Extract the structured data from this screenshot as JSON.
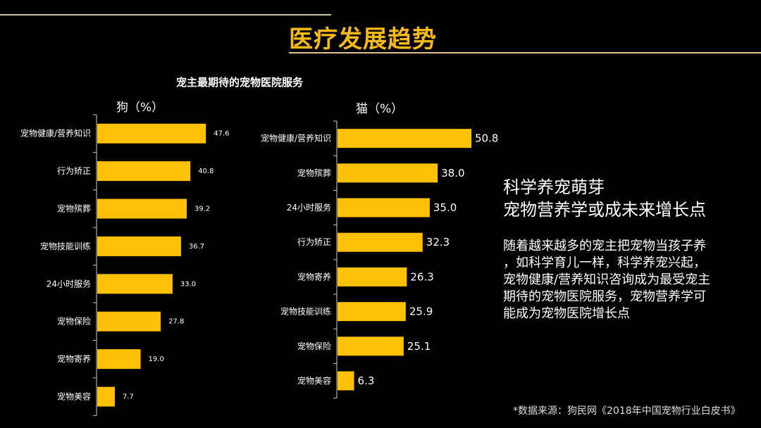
{
  "header": {
    "title": "医疗发展趋势",
    "accent": "#f6b918"
  },
  "subtitle": "宠主最期待的宠物医院服务",
  "chart_data": [
    {
      "type": "bar",
      "orientation": "horizontal",
      "title": "狗（%）",
      "categories": [
        "宠物健康/营养知识",
        "行为矫正",
        "宠物殡葬",
        "宠物技能训练",
        "24小时服务",
        "宠物保险",
        "宠物寄养",
        "宠物美容"
      ],
      "values": [
        47.6,
        40.8,
        39.2,
        36.7,
        33.0,
        27.8,
        19.0,
        7.7
      ],
      "labels": [
        "47.6",
        "40.8",
        "39.2",
        "36.7",
        "33.0",
        "27.8",
        "19.0",
        "7.7"
      ],
      "color": "#fcc005",
      "grid": false
    },
    {
      "type": "bar",
      "orientation": "horizontal",
      "title": "猫（%）",
      "categories": [
        "宠物健康/营养知识",
        "宠物殡葬",
        "24小时服务",
        "行为矫正",
        "宠物寄养",
        "宠物技能训练",
        "宠物保险",
        "宠物美容"
      ],
      "values": [
        50.8,
        38.0,
        35.0,
        32.3,
        26.3,
        25.9,
        25.1,
        6.3
      ],
      "labels": [
        "50.8",
        "38.0",
        "35.0",
        "32.3",
        "26.3",
        "25.9",
        "25.1",
        "6.3"
      ],
      "color": "#fcc005",
      "grid": false
    }
  ],
  "insight": {
    "headline": [
      "科学养宠萌芽",
      "宠物营养学或成未来增长点"
    ],
    "body": [
      "随着越来越多的宠主把宠物当孩子养",
      "，如科学育儿一样，科学养宠兴起，",
      "宠物健康/营养知识咨询成为最受宠主",
      "期待的宠物医院服务，宠物营养学可",
      "能成为宠物医院增长点"
    ]
  },
  "source": "*数据来源：狗民网《2018年中国宠物行业白皮书》"
}
